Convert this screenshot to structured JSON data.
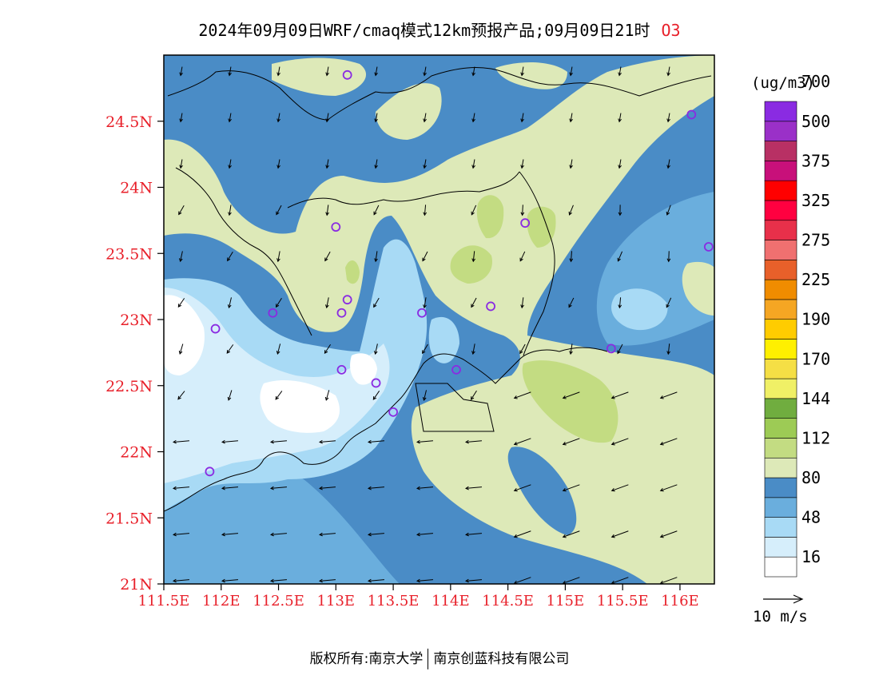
{
  "title": {
    "main": "2024年09月09日WRF/cmaq模式12km预报产品;09月09日21时",
    "pollutant": "O3"
  },
  "map": {
    "lon_range": [
      111.5,
      116.3
    ],
    "lat_range": [
      21.0,
      25.0
    ],
    "x_ticks": [
      "111.5E",
      "112E",
      "112.5E",
      "113E",
      "113.5E",
      "114E",
      "114.5E",
      "115E",
      "115.5E",
      "116E"
    ],
    "x_tick_values": [
      111.5,
      112.0,
      112.5,
      113.0,
      113.5,
      114.0,
      114.5,
      115.0,
      115.5,
      116.0
    ],
    "y_ticks": [
      "21N",
      "21.5N",
      "22N",
      "22.5N",
      "23N",
      "23.5N",
      "24N",
      "24.5N"
    ],
    "y_tick_values": [
      21.0,
      21.5,
      22.0,
      22.5,
      23.0,
      23.5,
      24.0,
      24.5
    ],
    "stations": [
      [
        113.1,
        24.85
      ],
      [
        116.1,
        24.55
      ],
      [
        114.65,
        23.73
      ],
      [
        113.0,
        23.7
      ],
      [
        116.25,
        23.55
      ],
      [
        112.45,
        23.05
      ],
      [
        113.1,
        23.15
      ],
      [
        113.05,
        23.05
      ],
      [
        113.75,
        23.05
      ],
      [
        114.35,
        23.1
      ],
      [
        111.95,
        22.93
      ],
      [
        115.4,
        22.78
      ],
      [
        113.05,
        22.62
      ],
      [
        113.35,
        22.52
      ],
      [
        114.05,
        22.62
      ],
      [
        113.5,
        22.3
      ],
      [
        111.9,
        21.85
      ]
    ]
  },
  "colorbar": {
    "unit": "(ug/m3)",
    "levels": [
      "16",
      "48",
      "80",
      "112",
      "144",
      "170",
      "190",
      "225",
      "275",
      "325",
      "375",
      "500",
      "700"
    ],
    "colors": [
      "#ffffff",
      "#d6eefb",
      "#a8daf5",
      "#6aaedd",
      "#4a8cc6",
      "#dde9b8",
      "#c3dc82",
      "#9dcb55",
      "#70ad3f",
      "#f0f066",
      "#f5df45",
      "#fff000",
      "#ffcc00",
      "#f5a623",
      "#f08c00",
      "#e8602a",
      "#f07070",
      "#e8304a",
      "#ff0040",
      "#ff0000",
      "#c8107a",
      "#b83064",
      "#9a30c8",
      "#8a2be2"
    ]
  },
  "wind": {
    "reference_label": "10 m/s"
  },
  "footer": {
    "left": "版权所有:南京大学",
    "right": "南京创蓝科技有限公司"
  }
}
